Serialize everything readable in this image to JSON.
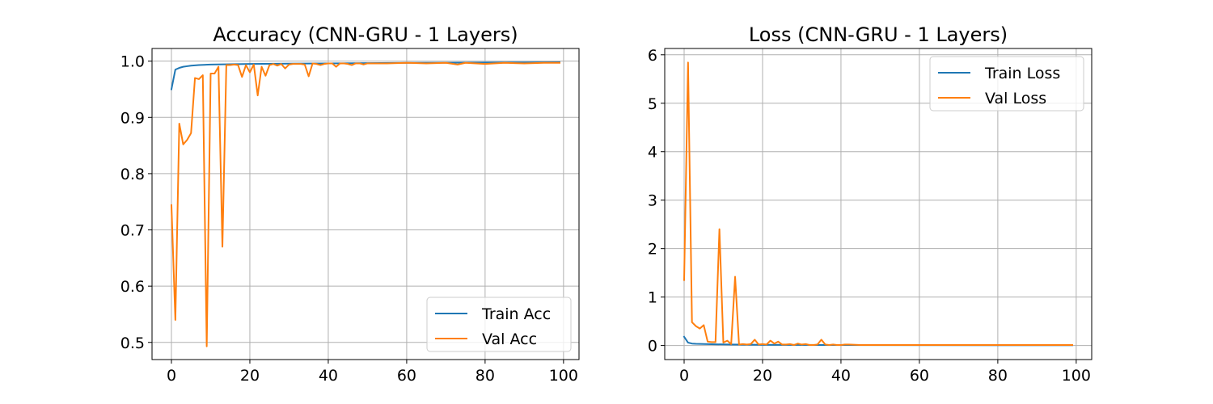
{
  "colors": {
    "train": "#1f77b4",
    "val": "#ff7f0e"
  },
  "chart_data": [
    {
      "type": "line",
      "title": "Accuracy (CNN-GRU - 1 Layers)",
      "xlabel": "",
      "ylabel": "",
      "xlim": [
        -4.95,
        103.95
      ],
      "ylim": [
        0.4695,
        1.0225
      ],
      "xticks": [
        0,
        20,
        40,
        60,
        80,
        100
      ],
      "yticks": [
        0.5,
        0.6,
        0.7,
        0.8,
        0.9,
        1.0
      ],
      "ytick_labels": [
        "0.5",
        "0.6",
        "0.7",
        "0.8",
        "0.9",
        "1.0"
      ],
      "grid": true,
      "legend_position": "lower-right",
      "series": [
        {
          "name": "Train Acc",
          "color": "#1f77b4",
          "x": [
            0,
            1,
            2,
            3,
            4,
            5,
            7,
            10,
            15,
            20,
            30,
            40,
            50,
            60,
            70,
            80,
            90,
            99
          ],
          "y": [
            0.95,
            0.985,
            0.988,
            0.99,
            0.991,
            0.992,
            0.993,
            0.994,
            0.9945,
            0.995,
            0.9955,
            0.996,
            0.9965,
            0.997,
            0.9972,
            0.9975,
            0.9977,
            0.998
          ]
        },
        {
          "name": "Val Acc",
          "color": "#ff7f0e",
          "x": [
            0,
            1,
            2,
            3,
            4,
            5,
            6,
            7,
            8,
            9,
            10,
            11,
            12,
            13,
            14,
            15,
            16,
            17,
            18,
            19,
            20,
            21,
            22,
            23,
            24,
            25,
            26,
            27,
            28,
            29,
            30,
            31,
            32,
            33,
            34,
            35,
            36,
            37,
            38,
            39,
            40,
            41,
            42,
            43,
            44,
            45,
            46,
            47,
            48,
            49,
            50,
            55,
            60,
            65,
            70,
            73,
            75,
            80,
            85,
            90,
            95,
            99
          ],
          "y": [
            0.744,
            0.54,
            0.889,
            0.852,
            0.86,
            0.872,
            0.97,
            0.968,
            0.975,
            0.493,
            0.978,
            0.978,
            0.99,
            0.67,
            0.993,
            0.993,
            0.994,
            0.993,
            0.972,
            0.993,
            0.98,
            0.994,
            0.939,
            0.99,
            0.974,
            0.993,
            0.995,
            0.992,
            0.995,
            0.987,
            0.994,
            0.995,
            0.995,
            0.995,
            0.994,
            0.973,
            0.996,
            0.995,
            0.993,
            0.995,
            0.996,
            0.996,
            0.99,
            0.996,
            0.996,
            0.995,
            0.993,
            0.996,
            0.996,
            0.994,
            0.996,
            0.996,
            0.997,
            0.996,
            0.997,
            0.994,
            0.997,
            0.995,
            0.997,
            0.996,
            0.997,
            0.997
          ]
        }
      ]
    },
    {
      "type": "line",
      "title": "Loss (CNN-GRU - 1 Layers)",
      "xlabel": "",
      "ylabel": "",
      "xlim": [
        -4.95,
        103.95
      ],
      "ylim": [
        -0.29,
        6.13
      ],
      "xticks": [
        0,
        20,
        40,
        60,
        80,
        100
      ],
      "yticks": [
        0,
        1,
        2,
        3,
        4,
        5,
        6
      ],
      "ytick_labels": [
        "0",
        "1",
        "2",
        "3",
        "4",
        "5",
        "6"
      ],
      "grid": true,
      "legend_position": "upper-right",
      "series": [
        {
          "name": "Train Loss",
          "color": "#1f77b4",
          "x": [
            0,
            1,
            2,
            3,
            5,
            8,
            12,
            20,
            30,
            40,
            60,
            80,
            99
          ],
          "y": [
            0.18,
            0.06,
            0.04,
            0.035,
            0.03,
            0.025,
            0.02,
            0.015,
            0.012,
            0.01,
            0.008,
            0.006,
            0.005
          ]
        },
        {
          "name": "Val Loss",
          "color": "#ff7f0e",
          "x": [
            0,
            1,
            2,
            3,
            4,
            5,
            6,
            7,
            8,
            9,
            10,
            11,
            12,
            13,
            14,
            15,
            16,
            17,
            18,
            19,
            20,
            21,
            22,
            23,
            24,
            25,
            26,
            27,
            28,
            29,
            30,
            31,
            32,
            33,
            34,
            35,
            36,
            37,
            38,
            39,
            40,
            41,
            42,
            45,
            50,
            60,
            70,
            80,
            90,
            99
          ],
          "y": [
            1.35,
            5.84,
            0.48,
            0.4,
            0.35,
            0.42,
            0.08,
            0.07,
            0.07,
            2.4,
            0.06,
            0.1,
            0.03,
            1.42,
            0.02,
            0.03,
            0.02,
            0.03,
            0.12,
            0.02,
            0.03,
            0.02,
            0.1,
            0.04,
            0.08,
            0.02,
            0.02,
            0.03,
            0.01,
            0.04,
            0.02,
            0.03,
            0.01,
            0.01,
            0.02,
            0.12,
            0.02,
            0.01,
            0.02,
            0.01,
            0.01,
            0.02,
            0.02,
            0.01,
            0.01,
            0.01,
            0.01,
            0.01,
            0.01,
            0.01
          ]
        }
      ]
    }
  ]
}
